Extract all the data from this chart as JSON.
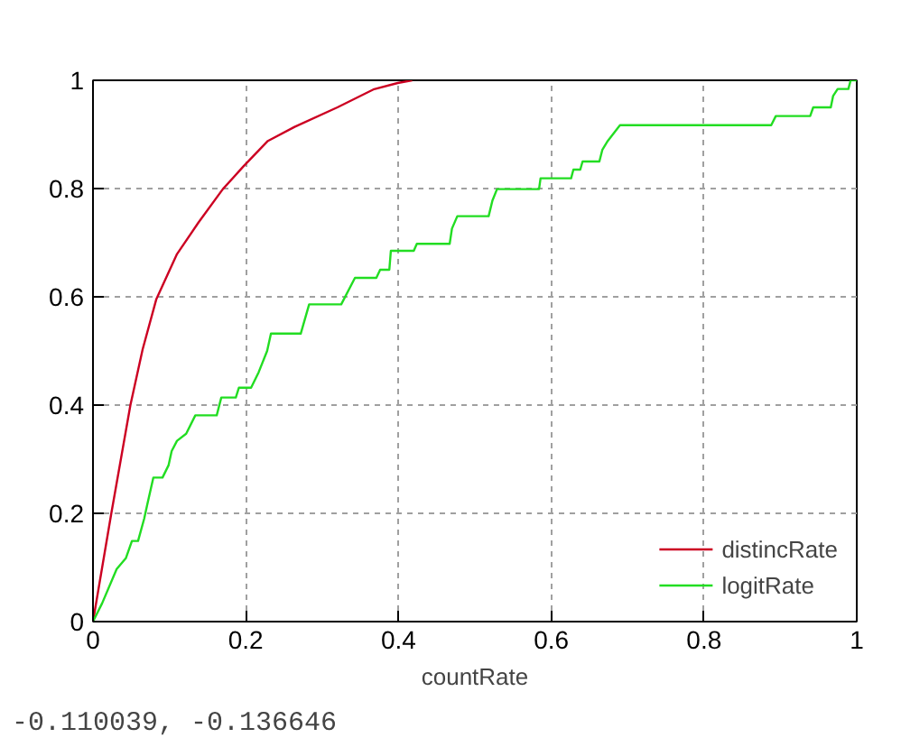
{
  "chart_data": {
    "type": "line",
    "xlabel": "countRate",
    "annotations": [
      "-0.110039, -0.136646"
    ],
    "xlim": [
      0,
      1
    ],
    "ylim": [
      0,
      1
    ],
    "xticks": [
      0,
      0.2,
      0.4,
      0.6,
      0.8,
      1
    ],
    "yticks": [
      0,
      0.2,
      0.4,
      0.6,
      0.8,
      1
    ],
    "grid": true,
    "legend": "bottom right",
    "line_style": "solid",
    "series": [
      {
        "name": "distincRate",
        "color": "#cc0022",
        "x": [
          0,
          0.024,
          0.049,
          0.065,
          0.083,
          0.11,
          0.138,
          0.17,
          0.197,
          0.229,
          0.264,
          0.32,
          0.367,
          0.399,
          0.418
        ],
        "values": [
          0,
          0.2,
          0.4,
          0.503,
          0.596,
          0.679,
          0.737,
          0.799,
          0.841,
          0.888,
          0.914,
          0.95,
          0.983,
          0.995,
          1
        ]
      },
      {
        "name": "logitRate",
        "color": "#22dd22",
        "x": [
          0,
          0.012,
          0.031,
          0.043,
          0.051,
          0.059,
          0.067,
          0.071,
          0.079,
          0.091,
          0.099,
          0.103,
          0.11,
          0.122,
          0.134,
          0.162,
          0.168,
          0.187,
          0.191,
          0.207,
          0.217,
          0.228,
          0.233,
          0.272,
          0.283,
          0.325,
          0.343,
          0.371,
          0.376,
          0.388,
          0.39,
          0.42,
          0.424,
          0.467,
          0.47,
          0.477,
          0.518,
          0.523,
          0.529,
          0.584,
          0.586,
          0.626,
          0.629,
          0.638,
          0.641,
          0.663,
          0.667,
          0.674,
          0.69,
          0.888,
          0.894,
          0.939,
          0.943,
          0.966,
          0.969,
          0.975,
          0.989,
          0.992,
          1
        ],
        "values": [
          0,
          0.034,
          0.097,
          0.117,
          0.149,
          0.149,
          0.19,
          0.216,
          0.266,
          0.266,
          0.289,
          0.315,
          0.334,
          0.347,
          0.381,
          0.381,
          0.414,
          0.414,
          0.432,
          0.432,
          0.461,
          0.5,
          0.532,
          0.532,
          0.586,
          0.586,
          0.635,
          0.635,
          0.65,
          0.65,
          0.685,
          0.685,
          0.698,
          0.698,
          0.726,
          0.749,
          0.749,
          0.778,
          0.799,
          0.799,
          0.819,
          0.819,
          0.835,
          0.835,
          0.85,
          0.85,
          0.872,
          0.888,
          0.917,
          0.917,
          0.934,
          0.934,
          0.95,
          0.95,
          0.971,
          0.984,
          0.984,
          1,
          1
        ]
      }
    ]
  }
}
